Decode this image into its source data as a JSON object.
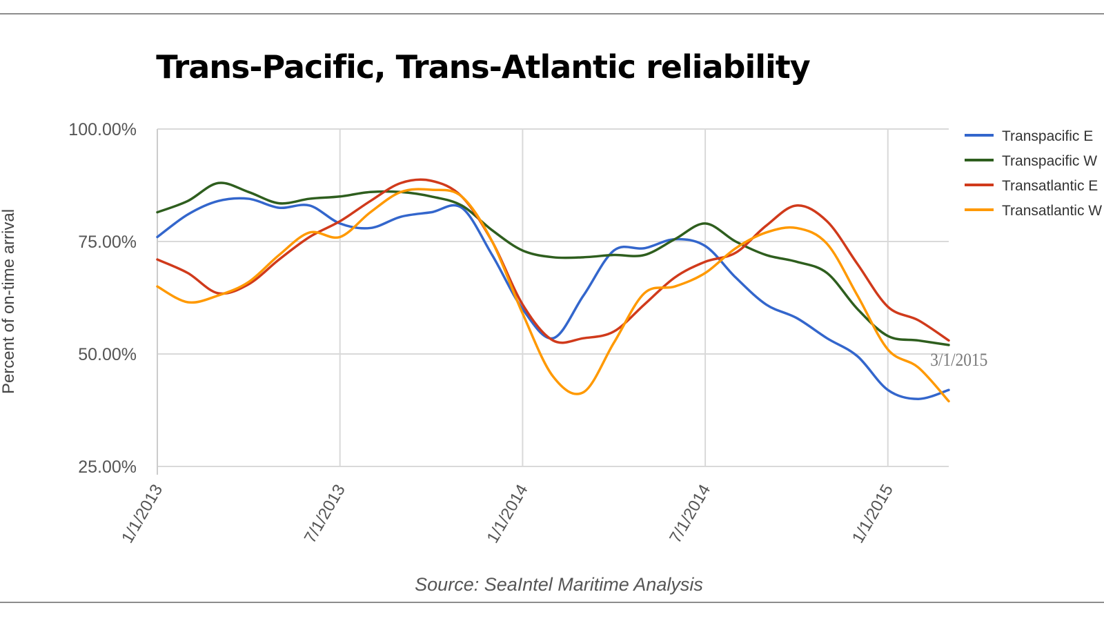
{
  "chart_data": {
    "type": "line",
    "title": "Trans-Pacific, Trans-Atlantic reliability",
    "ylabel": "Percent of on-time arrival",
    "xlabel": "",
    "source": "Source: SeaIntel Maritime Analysis",
    "annotation": "3/1/2015",
    "y_ticks": [
      "100.00%",
      "75.00%",
      "50.00%",
      "25.00%"
    ],
    "y_tick_values": [
      100,
      75,
      50,
      25
    ],
    "x_ticks": [
      "1/1/2013",
      "7/1/2013",
      "1/1/2014",
      "7/1/2014",
      "1/1/2015"
    ],
    "ylim": [
      25,
      100
    ],
    "xlim": [
      "2013-01",
      "2015-03"
    ],
    "grid": true,
    "legend_position": "right",
    "x": [
      "2013-01",
      "2013-02",
      "2013-03",
      "2013-04",
      "2013-05",
      "2013-06",
      "2013-07",
      "2013-08",
      "2013-09",
      "2013-10",
      "2013-11",
      "2013-12",
      "2014-01",
      "2014-02",
      "2014-03",
      "2014-04",
      "2014-05",
      "2014-06",
      "2014-07",
      "2014-08",
      "2014-09",
      "2014-10",
      "2014-11",
      "2014-12",
      "2015-01",
      "2015-02",
      "2015-03"
    ],
    "series": [
      {
        "name": "Transpacific E",
        "color": "#3366cc",
        "values": [
          76,
          81,
          84,
          84.5,
          82.5,
          83,
          79,
          78,
          80.5,
          81.5,
          82.5,
          72,
          60,
          53.5,
          63,
          73,
          73.5,
          75.5,
          74,
          67,
          61,
          58,
          53.5,
          49.5,
          42,
          40,
          42
        ]
      },
      {
        "name": "Transpacific W",
        "color": "#2e5e1e",
        "values": [
          81.5,
          84,
          88,
          86,
          83.5,
          84.5,
          85,
          86,
          86,
          85,
          83,
          77.5,
          73,
          71.5,
          71.5,
          72,
          72,
          75.5,
          79,
          75,
          72,
          70.5,
          68,
          60,
          54,
          53,
          52
        ]
      },
      {
        "name": "Transatlantic E",
        "color": "#d03a1b",
        "values": [
          71,
          68,
          63.5,
          65.5,
          71,
          76,
          79.5,
          84,
          88,
          88.5,
          85,
          75,
          61,
          53,
          53.5,
          55,
          61,
          67,
          70.5,
          72.5,
          78.5,
          83,
          79.5,
          70,
          60.5,
          57.5,
          53
        ]
      },
      {
        "name": "Transatlantic W",
        "color": "#ff9900",
        "values": [
          65,
          61.5,
          63,
          66,
          72,
          77,
          76,
          81.5,
          86,
          86.5,
          85,
          75,
          59,
          45,
          41.5,
          52.5,
          63.5,
          65,
          68,
          73.5,
          77,
          78,
          74.5,
          63,
          51,
          47,
          39.5
        ]
      }
    ]
  }
}
